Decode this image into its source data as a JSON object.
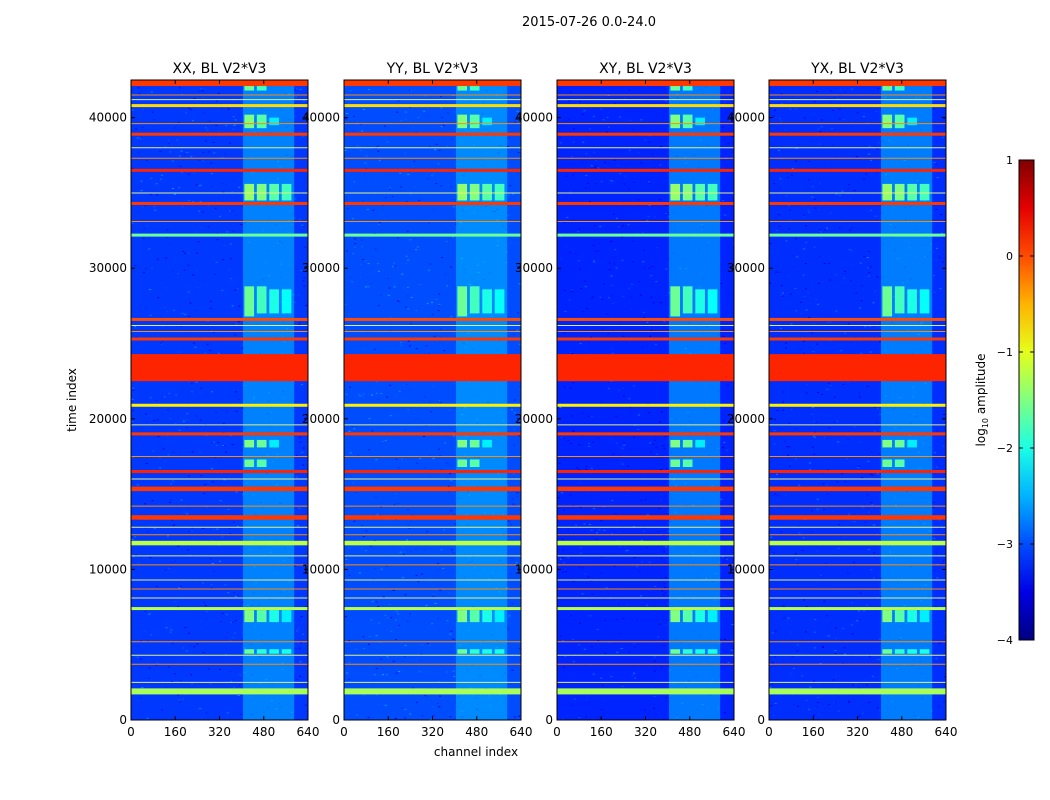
{
  "chart_data": {
    "type": "heatmap",
    "suptitle": "2015-07-26 0.0-24.0",
    "xlabel": "channel index",
    "ylabel": "time index",
    "xlim": [
      0,
      640
    ],
    "ylim": [
      0,
      42500
    ],
    "x_ticks": [
      0,
      160,
      320,
      480,
      640
    ],
    "y_ticks": [
      0,
      10000,
      20000,
      30000,
      40000
    ],
    "panels": [
      {
        "title": "XX, BL V2*V3",
        "background_log10": -3.1
      },
      {
        "title": "YY, BL V2*V3",
        "background_log10": -3.0
      },
      {
        "title": "XY, BL V2*V3",
        "background_log10": -3.2
      },
      {
        "title": "YX, BL V2*V3",
        "background_log10": -3.15
      }
    ],
    "colorbar": {
      "label": "log10 amplitude",
      "label_base": "log",
      "label_sub": "10",
      "label_rest": " amplitude",
      "min": -4,
      "max": 1,
      "ticks": [
        "1",
        "0",
        "−1",
        "−2",
        "−3",
        "−4"
      ],
      "colormap": "jet"
    },
    "horizontal_bands": [
      {
        "t0": 1700,
        "t1": 2100,
        "value": -1.3
      },
      {
        "t0": 7300,
        "t1": 7500,
        "value": -1.2
      },
      {
        "t0": 11600,
        "t1": 11900,
        "value": -1.2
      },
      {
        "t0": 13300,
        "t1": 13600,
        "value": 0.1
      },
      {
        "t0": 15200,
        "t1": 15500,
        "value": 0.1
      },
      {
        "t0": 16400,
        "t1": 16600,
        "value": 0.2
      },
      {
        "t0": 18900,
        "t1": 19100,
        "value": 0.1
      },
      {
        "t0": 20800,
        "t1": 21000,
        "value": -0.8
      },
      {
        "t0": 22500,
        "t1": 24300,
        "value": 0.2
      },
      {
        "t0": 25200,
        "t1": 25400,
        "value": 0.1
      },
      {
        "t0": 26500,
        "t1": 26700,
        "value": 0.0
      },
      {
        "t0": 32100,
        "t1": 32300,
        "value": -1.6
      },
      {
        "t0": 34200,
        "t1": 34400,
        "value": 0.1
      },
      {
        "t0": 36400,
        "t1": 36600,
        "value": 0.2
      },
      {
        "t0": 38800,
        "t1": 39000,
        "value": 0.1
      },
      {
        "t0": 40700,
        "t1": 40900,
        "value": -0.7
      },
      {
        "t0": 42100,
        "t1": 42500,
        "value": 0.1
      }
    ],
    "thin_lines": [
      2500,
      3700,
      4300,
      5200,
      8100,
      8700,
      9300,
      10300,
      10900,
      12300,
      12800,
      14200,
      16000,
      17500,
      19600,
      25800,
      26200,
      33100,
      35000,
      37300,
      38000,
      39600,
      41200,
      41500
    ],
    "rfi_blocks": [
      {
        "c0": 410,
        "c1": 445,
        "t0": 6500,
        "t1": 7300,
        "value": -1.5
      },
      {
        "c0": 455,
        "c1": 490,
        "t0": 6500,
        "t1": 7300,
        "value": -1.7
      },
      {
        "c0": 500,
        "c1": 535,
        "t0": 6500,
        "t1": 7300,
        "value": -2.0
      },
      {
        "c0": 545,
        "c1": 580,
        "t0": 6500,
        "t1": 7300,
        "value": -2.2
      },
      {
        "c0": 410,
        "c1": 445,
        "t0": 4400,
        "t1": 4700,
        "value": -1.6
      },
      {
        "c0": 455,
        "c1": 490,
        "t0": 4400,
        "t1": 4700,
        "value": -1.9
      },
      {
        "c0": 500,
        "c1": 535,
        "t0": 4400,
        "t1": 4700,
        "value": -2.0
      },
      {
        "c0": 545,
        "c1": 580,
        "t0": 4400,
        "t1": 4700,
        "value": -2.0
      },
      {
        "c0": 410,
        "c1": 445,
        "t0": 16800,
        "t1": 17300,
        "value": -1.6
      },
      {
        "c0": 455,
        "c1": 490,
        "t0": 16800,
        "t1": 17300,
        "value": -1.7
      },
      {
        "c0": 410,
        "c1": 445,
        "t0": 18100,
        "t1": 18600,
        "value": -1.5
      },
      {
        "c0": 455,
        "c1": 490,
        "t0": 18100,
        "t1": 18600,
        "value": -1.6
      },
      {
        "c0": 500,
        "c1": 535,
        "t0": 18100,
        "t1": 18600,
        "value": -2.2
      },
      {
        "c0": 410,
        "c1": 445,
        "t0": 26800,
        "t1": 28800,
        "value": -1.6
      },
      {
        "c0": 455,
        "c1": 490,
        "t0": 27000,
        "t1": 28800,
        "value": -1.8
      },
      {
        "c0": 500,
        "c1": 535,
        "t0": 27000,
        "t1": 28600,
        "value": -2.0
      },
      {
        "c0": 545,
        "c1": 580,
        "t0": 27000,
        "t1": 28600,
        "value": -2.1
      },
      {
        "c0": 410,
        "c1": 445,
        "t0": 34500,
        "t1": 35600,
        "value": -1.4
      },
      {
        "c0": 455,
        "c1": 490,
        "t0": 34500,
        "t1": 35600,
        "value": -1.5
      },
      {
        "c0": 500,
        "c1": 535,
        "t0": 34500,
        "t1": 35600,
        "value": -1.7
      },
      {
        "c0": 545,
        "c1": 580,
        "t0": 34500,
        "t1": 35600,
        "value": -1.8
      },
      {
        "c0": 410,
        "c1": 445,
        "t0": 39300,
        "t1": 40200,
        "value": -1.5
      },
      {
        "c0": 455,
        "c1": 490,
        "t0": 39300,
        "t1": 40200,
        "value": -1.7
      },
      {
        "c0": 500,
        "c1": 535,
        "t0": 39500,
        "t1": 40000,
        "value": -2.2
      },
      {
        "c0": 410,
        "c1": 445,
        "t0": 41800,
        "t1": 42100,
        "value": -1.6
      },
      {
        "c0": 455,
        "c1": 490,
        "t0": 41800,
        "t1": 42100,
        "value": -1.8
      }
    ],
    "rfi_columns": [
      {
        "c0": 405,
        "c1": 590,
        "value": -2.45
      }
    ]
  }
}
